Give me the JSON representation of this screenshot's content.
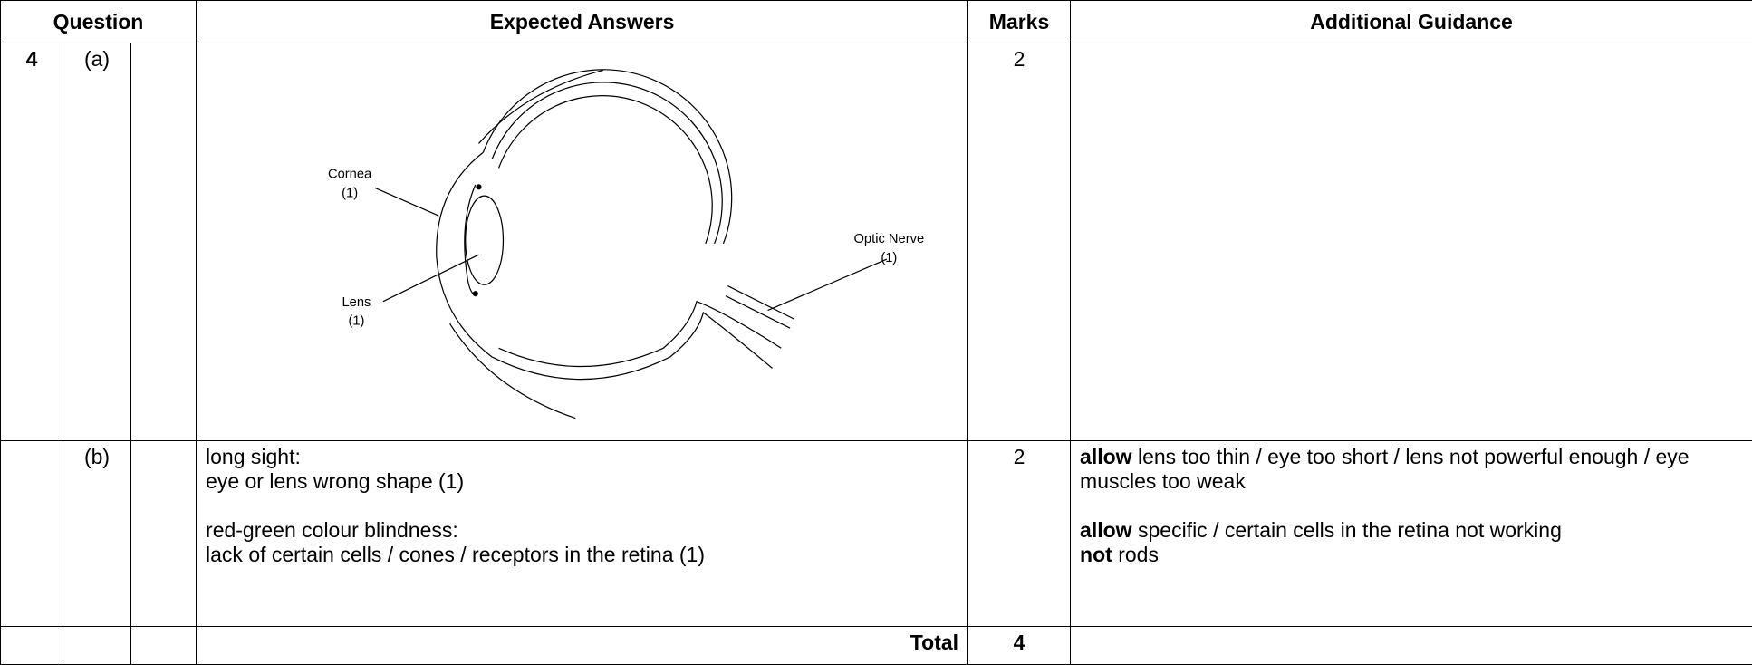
{
  "table": {
    "headers": [
      "Question",
      "Expected Answers",
      "Marks",
      "Additional Guidance"
    ],
    "rows": [
      {
        "question": "4",
        "part": "(a)",
        "marks": "2",
        "diagram": {
          "labels": [
            {
              "name": "Cornea",
              "mark": "(1)"
            },
            {
              "name": "Lens",
              "mark": "(1)"
            },
            {
              "name": "Optic Nerve",
              "mark": "(1)"
            }
          ]
        }
      },
      {
        "part": "(b)",
        "marks": "2",
        "answers": [
          [
            "long sight:",
            "eye or lens wrong shape (1)"
          ],
          [
            "red-green colour blindness:",
            "lack of certain cells / cones / receptors in the retina (1)"
          ]
        ],
        "guidance": [
          [
            {
              "bold": "allow",
              "text": "lens too thin / eye too short / lens not powerful enough / eye muscles too weak"
            }
          ],
          [
            {
              "bold": "allow",
              "text": "specific / certain cells in the retina not working"
            },
            {
              "bold": "not",
              "text": "rods"
            }
          ]
        ]
      }
    ],
    "total": {
      "label": "Total",
      "marks": "4"
    }
  }
}
